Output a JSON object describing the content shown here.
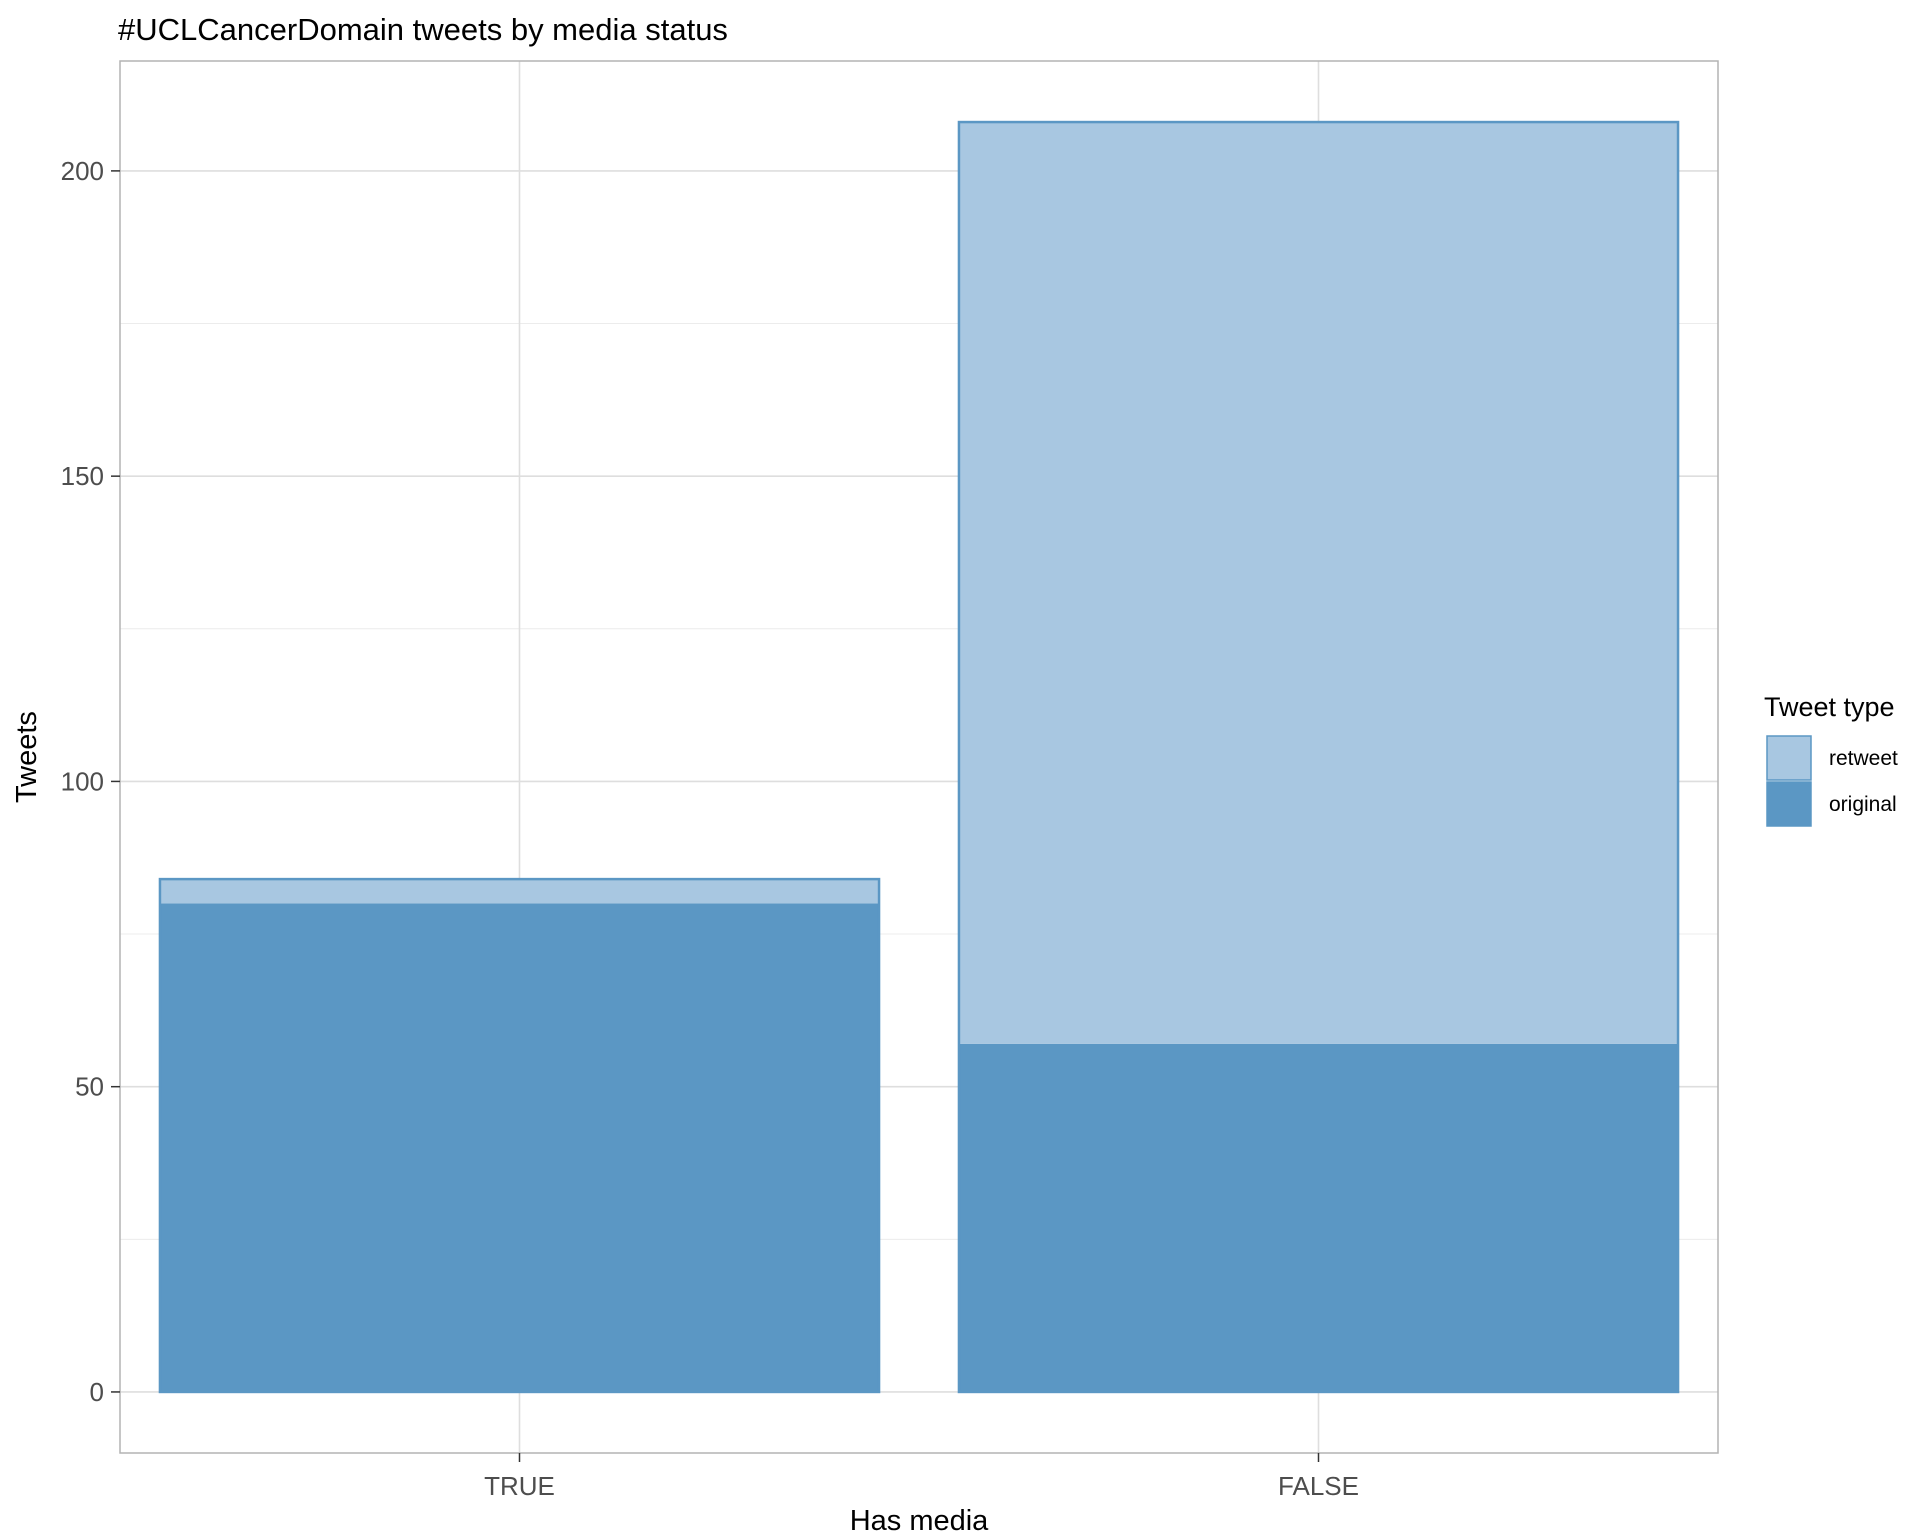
{
  "chart_data": {
    "type": "bar",
    "stacked": true,
    "title": "#UCLCancerDomain tweets by media status",
    "xlabel": "Has media",
    "ylabel": "Tweets",
    "categories": [
      "TRUE",
      "FALSE"
    ],
    "series": [
      {
        "name": "original",
        "values": [
          80,
          57
        ],
        "color": "#5b97c4"
      },
      {
        "name": "retweet",
        "values": [
          4,
          151
        ],
        "color": "#a8c7e1"
      }
    ],
    "ylim": [
      -10,
      218
    ],
    "yticks": [
      0,
      50,
      100,
      150,
      200
    ],
    "grid": true,
    "legend": {
      "title": "Tweet type",
      "placement": "right",
      "entries": [
        "retweet",
        "original"
      ]
    },
    "outline_color": "#5b97c4"
  }
}
